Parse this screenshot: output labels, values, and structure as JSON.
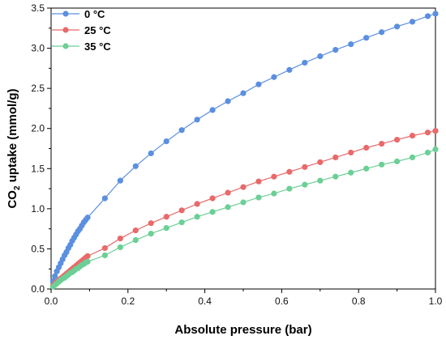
{
  "chart_data": {
    "type": "line",
    "xlabel": "Absolute pressure (bar)",
    "ylabel_main": "CO",
    "ylabel_sub": "2",
    "ylabel_rest": " uptake (mmol/g)",
    "xlim": [
      0,
      1.0
    ],
    "ylim": [
      0,
      3.5
    ],
    "x_ticks": [
      "0.0",
      "0.2",
      "0.4",
      "0.6",
      "0.8",
      "1.0"
    ],
    "y_ticks": [
      "0.0",
      "0.5",
      "1.0",
      "1.5",
      "2.0",
      "2.5",
      "3.0",
      "3.5"
    ],
    "grid": false,
    "legend_position": "top-left",
    "series": [
      {
        "name": "0 °C",
        "color": "#5b8fe0",
        "x": [
          0.005,
          0.01,
          0.015,
          0.02,
          0.025,
          0.03,
          0.035,
          0.04,
          0.045,
          0.05,
          0.055,
          0.06,
          0.065,
          0.07,
          0.075,
          0.08,
          0.085,
          0.09,
          0.095,
          0.14,
          0.18,
          0.22,
          0.26,
          0.3,
          0.34,
          0.38,
          0.42,
          0.46,
          0.5,
          0.54,
          0.58,
          0.62,
          0.66,
          0.7,
          0.74,
          0.78,
          0.82,
          0.86,
          0.9,
          0.94,
          0.98,
          1.0
        ],
        "y": [
          0.1,
          0.16,
          0.22,
          0.27,
          0.32,
          0.37,
          0.42,
          0.46,
          0.51,
          0.55,
          0.6,
          0.64,
          0.68,
          0.72,
          0.75,
          0.79,
          0.83,
          0.86,
          0.89,
          1.13,
          1.35,
          1.53,
          1.69,
          1.84,
          1.98,
          2.11,
          2.23,
          2.34,
          2.44,
          2.55,
          2.64,
          2.73,
          2.82,
          2.9,
          2.98,
          3.05,
          3.13,
          3.2,
          3.27,
          3.33,
          3.4,
          3.43
        ]
      },
      {
        "name": "25 °C",
        "color": "#e86a6a",
        "x": [
          0.005,
          0.01,
          0.015,
          0.02,
          0.025,
          0.03,
          0.035,
          0.04,
          0.045,
          0.05,
          0.055,
          0.06,
          0.065,
          0.07,
          0.075,
          0.08,
          0.085,
          0.09,
          0.095,
          0.14,
          0.18,
          0.22,
          0.26,
          0.3,
          0.34,
          0.38,
          0.42,
          0.46,
          0.5,
          0.54,
          0.58,
          0.62,
          0.66,
          0.7,
          0.74,
          0.78,
          0.82,
          0.86,
          0.9,
          0.94,
          0.98,
          1.0
        ],
        "y": [
          0.04,
          0.07,
          0.09,
          0.11,
          0.13,
          0.15,
          0.17,
          0.19,
          0.21,
          0.23,
          0.25,
          0.27,
          0.29,
          0.31,
          0.33,
          0.35,
          0.37,
          0.39,
          0.41,
          0.51,
          0.63,
          0.73,
          0.82,
          0.9,
          0.98,
          1.06,
          1.13,
          1.2,
          1.27,
          1.34,
          1.4,
          1.46,
          1.52,
          1.58,
          1.64,
          1.7,
          1.76,
          1.81,
          1.86,
          1.91,
          1.95,
          1.97
        ]
      },
      {
        "name": "35 °C",
        "color": "#6ccf96",
        "x": [
          0.005,
          0.01,
          0.015,
          0.02,
          0.025,
          0.03,
          0.035,
          0.04,
          0.045,
          0.05,
          0.055,
          0.06,
          0.065,
          0.07,
          0.075,
          0.08,
          0.085,
          0.09,
          0.095,
          0.14,
          0.18,
          0.22,
          0.26,
          0.3,
          0.34,
          0.38,
          0.42,
          0.46,
          0.5,
          0.54,
          0.58,
          0.62,
          0.66,
          0.7,
          0.74,
          0.78,
          0.82,
          0.86,
          0.9,
          0.94,
          0.98,
          1.0
        ],
        "y": [
          0.03,
          0.05,
          0.07,
          0.09,
          0.11,
          0.13,
          0.14,
          0.16,
          0.18,
          0.2,
          0.21,
          0.23,
          0.25,
          0.26,
          0.28,
          0.3,
          0.31,
          0.33,
          0.34,
          0.42,
          0.52,
          0.61,
          0.69,
          0.76,
          0.83,
          0.9,
          0.96,
          1.02,
          1.08,
          1.14,
          1.19,
          1.25,
          1.3,
          1.35,
          1.4,
          1.45,
          1.5,
          1.55,
          1.59,
          1.64,
          1.7,
          1.74
        ]
      }
    ]
  }
}
